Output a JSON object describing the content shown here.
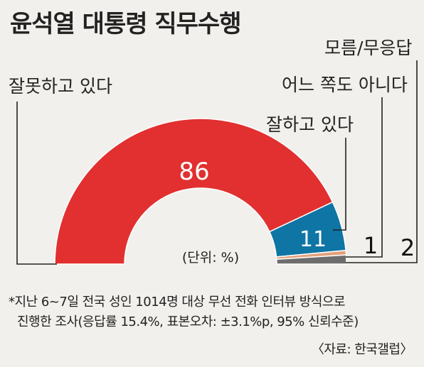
{
  "title": "윤석열 대통령 직무수행",
  "unit_note": "(단위: %)",
  "footnote": {
    "line1": "*지난 6~7일 전국 성인 1014명 대상 무선 전화 인터뷰 방식으로",
    "line2": "진행한 조사(응답률 15.4%, 표본오차: ±3.1%p, 95% 신뢰수준)"
  },
  "source": "〈자료: 한국갤럽〉",
  "chart_data": {
    "type": "pie",
    "subtype": "semi-donut",
    "categories": [
      "잘못하고 있다",
      "잘하고 있다",
      "어느 쪽도 아니다",
      "모름/무응답"
    ],
    "values": [
      86,
      11,
      1,
      2
    ],
    "value_labels": [
      "86",
      "11",
      "1",
      "2"
    ],
    "colors": [
      "#e1302f",
      "#0e75a4",
      "#e3a07a",
      "#6d6d6d"
    ]
  }
}
